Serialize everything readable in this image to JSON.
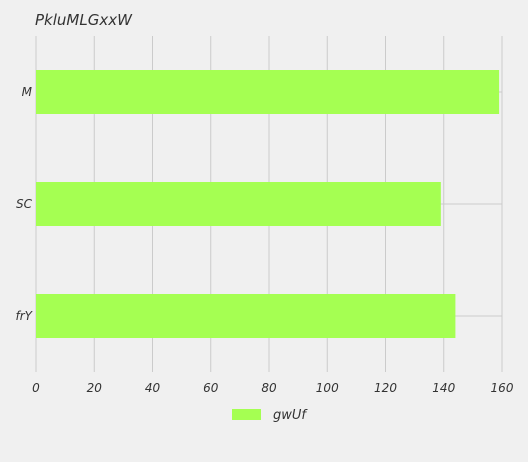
{
  "chart_data": {
    "type": "bar",
    "orientation": "horizontal",
    "title": "PkluMLGxxW",
    "xlabel": "",
    "ylabel": "",
    "categories": [
      "M",
      "SC",
      "frY"
    ],
    "series": [
      {
        "name": "gwUf",
        "values": [
          159,
          139,
          144
        ],
        "color": "#a5ff52"
      }
    ],
    "xlim": [
      0,
      160
    ],
    "xticks": [
      0,
      20,
      40,
      60,
      80,
      100,
      120,
      140,
      160
    ],
    "grid": true,
    "legend_position": "bottom-center",
    "background": "#f0f0f0",
    "grid_color": "#cbcbcb"
  }
}
